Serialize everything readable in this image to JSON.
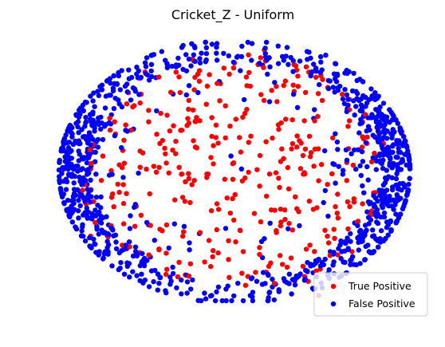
{
  "chart_data": {
    "type": "scatter",
    "title": "Cricket_Z - Uniform",
    "xlabel": "",
    "ylabel": "",
    "axes_visible": false,
    "grid": false,
    "xlim": [
      -1.0,
      1.0
    ],
    "ylim": [
      -1.0,
      1.0
    ],
    "legend": {
      "position": "lower-right",
      "entries": [
        "True Positive",
        "False Positive"
      ]
    },
    "series": [
      {
        "name": "True Positive",
        "color": "#ff0000",
        "marker": "circle",
        "approx_count": 360,
        "shape": "spread across the interior and inner ring of the cloud",
        "points": [
          [
            0.17,
            0.94
          ],
          [
            0.0,
            0.84
          ],
          [
            -0.2,
            0.78
          ],
          [
            -0.06,
            0.8
          ],
          [
            -0.08,
            0.68
          ],
          [
            0.09,
            0.66
          ],
          [
            0.34,
            0.62
          ],
          [
            0.46,
            0.78
          ],
          [
            0.29,
            0.7
          ],
          [
            -0.58,
            0.5
          ],
          [
            -0.42,
            0.45
          ],
          [
            -0.62,
            0.36
          ],
          [
            -0.3,
            0.32
          ],
          [
            -0.41,
            0.24
          ],
          [
            -0.12,
            0.2
          ],
          [
            0.18,
            0.23
          ],
          [
            0.38,
            0.22
          ],
          [
            0.28,
            0.1
          ],
          [
            0.56,
            0.26
          ],
          [
            0.64,
            0.07
          ],
          [
            -0.75,
            0.12
          ],
          [
            -0.82,
            0.02
          ],
          [
            -0.64,
            0.03
          ],
          [
            -0.46,
            0.04
          ],
          [
            -0.3,
            -0.02
          ],
          [
            -0.15,
            -0.02
          ],
          [
            0.06,
            -0.05
          ],
          [
            0.2,
            -0.02
          ],
          [
            0.4,
            -0.02
          ],
          [
            0.53,
            -0.1
          ],
          [
            0.64,
            -0.07
          ],
          [
            -0.85,
            -0.24
          ],
          [
            -0.7,
            -0.2
          ],
          [
            -0.56,
            -0.27
          ],
          [
            -0.34,
            -0.22
          ],
          [
            -0.1,
            -0.25
          ],
          [
            0.23,
            -0.3
          ],
          [
            0.47,
            -0.28
          ],
          [
            0.59,
            -0.36
          ],
          [
            0.73,
            -0.25
          ],
          [
            -0.82,
            -0.5
          ],
          [
            -0.64,
            -0.57
          ],
          [
            -0.43,
            -0.6
          ],
          [
            -0.17,
            -0.7
          ],
          [
            0.05,
            -0.62
          ],
          [
            0.26,
            -0.65
          ],
          [
            0.43,
            -0.57
          ],
          [
            0.67,
            -0.62
          ],
          [
            -0.28,
            -0.8
          ],
          [
            -0.03,
            -0.82
          ],
          [
            0.12,
            -0.78
          ],
          [
            0.3,
            -0.74
          ],
          [
            0.42,
            -0.85
          ],
          [
            0.48,
            -0.96
          ],
          [
            0.5,
            0.55
          ],
          [
            -0.51,
            0.77
          ],
          [
            -0.26,
            0.55
          ],
          [
            0.06,
            0.45
          ],
          [
            0.33,
            0.4
          ],
          [
            0.72,
            0.47
          ]
        ]
      },
      {
        "name": "False Positive",
        "color": "#0000ff",
        "marker": "circle",
        "approx_count": 1080,
        "shape": "outer elliptical ring, densest at the left and right lobes",
        "points": [
          [
            -0.97,
            0.16
          ],
          [
            -0.96,
            -0.06
          ],
          [
            -0.98,
            0.03
          ],
          [
            -0.93,
            0.3
          ],
          [
            -0.93,
            -0.31
          ],
          [
            -0.86,
            0.47
          ],
          [
            -0.87,
            -0.46
          ],
          [
            -0.78,
            0.62
          ],
          [
            -0.77,
            -0.62
          ],
          [
            -0.66,
            0.74
          ],
          [
            -0.66,
            -0.76
          ],
          [
            -0.5,
            0.88
          ],
          [
            -0.51,
            -0.84
          ],
          [
            -0.3,
            0.96
          ],
          [
            -0.33,
            -0.9
          ],
          [
            -0.1,
            0.99
          ],
          [
            -0.13,
            -0.96
          ],
          [
            0.1,
            0.99
          ],
          [
            0.09,
            -0.96
          ],
          [
            0.3,
            0.96
          ],
          [
            0.3,
            -0.86
          ],
          [
            0.52,
            0.9
          ],
          [
            0.5,
            -0.9
          ],
          [
            0.68,
            0.76
          ],
          [
            0.68,
            -0.72
          ],
          [
            0.8,
            0.58
          ],
          [
            0.83,
            -0.52
          ],
          [
            0.9,
            0.4
          ],
          [
            0.92,
            -0.33
          ],
          [
            0.96,
            0.2
          ],
          [
            0.97,
            -0.12
          ],
          [
            0.98,
            0.05
          ],
          [
            0.88,
            0.12
          ],
          [
            0.86,
            -0.05
          ],
          [
            0.79,
            0.28
          ],
          [
            0.77,
            -0.25
          ],
          [
            -0.86,
            0.1
          ],
          [
            -0.84,
            -0.1
          ],
          [
            -0.74,
            0.35
          ],
          [
            -0.73,
            -0.35
          ],
          [
            -0.02,
            0.12
          ],
          [
            0.04,
            0.02
          ],
          [
            -0.2,
            -0.48
          ],
          [
            0.17,
            -0.52
          ],
          [
            -0.35,
            0.6
          ],
          [
            0.2,
            0.54
          ],
          [
            -0.05,
            -0.44
          ],
          [
            0.37,
            -0.42
          ]
        ]
      }
    ]
  }
}
